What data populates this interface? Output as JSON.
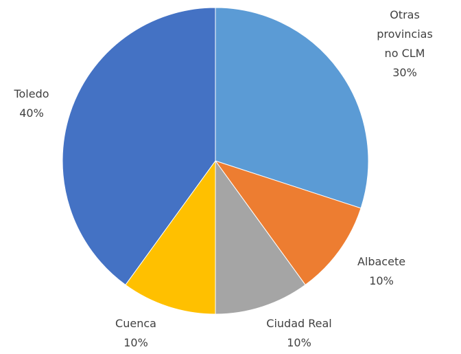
{
  "chart_data": {
    "type": "pie",
    "categories": [
      "Otras provincias no CLM",
      "Albacete",
      "Ciudad Real",
      "Cuenca",
      "Toledo"
    ],
    "values": [
      30,
      10,
      10,
      10,
      40
    ],
    "value_labels": [
      "30%",
      "10%",
      "10%",
      "10%",
      "40%"
    ],
    "colors": [
      "#5b9bd5",
      "#ed7d31",
      "#a5a5a5",
      "#ffc000",
      "#4472c4"
    ]
  }
}
